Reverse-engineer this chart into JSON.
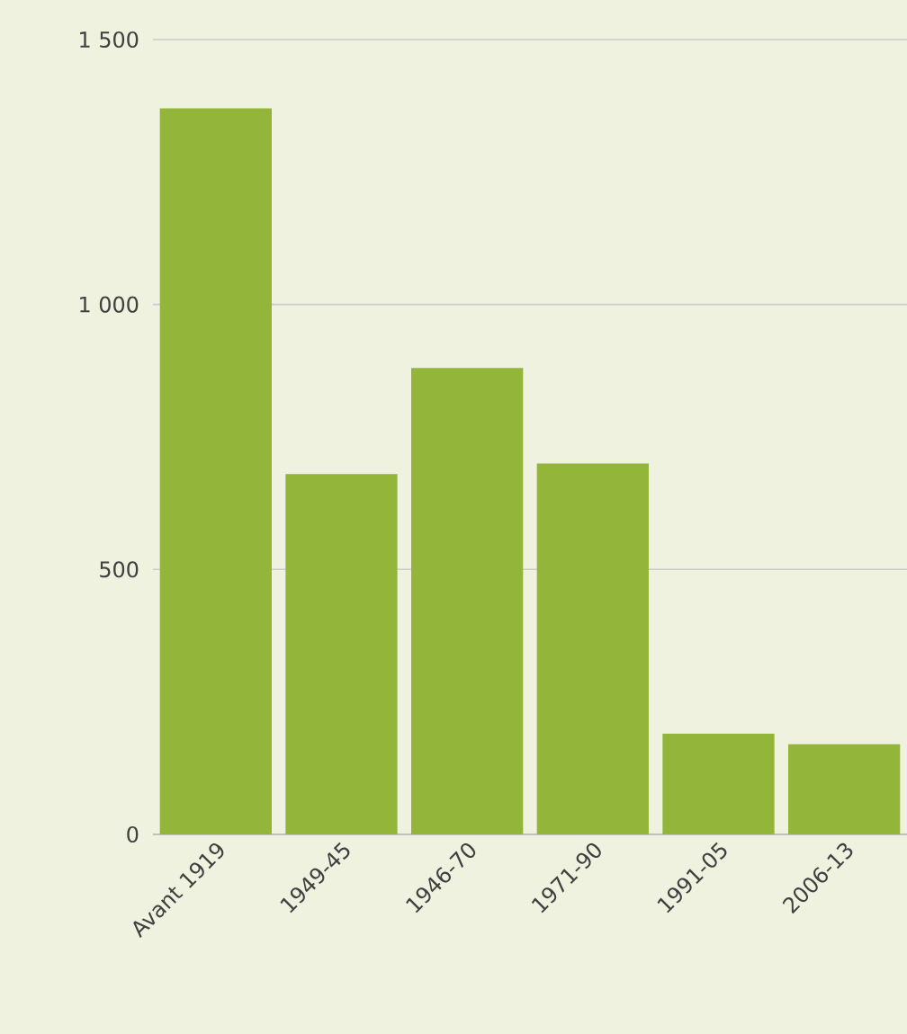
{
  "chart_data": {
    "type": "bar",
    "categories": [
      "Avant 1919",
      "1949-45",
      "1946-70",
      "1971-90",
      "1991-05",
      "2006-13"
    ],
    "values": [
      1370,
      680,
      880,
      700,
      190,
      170
    ],
    "color": "#93b53a",
    "ylim": [
      0,
      1500
    ],
    "yticks": [
      0,
      {
        "value": 500,
        "label": "500"
      },
      {
        "value": 1000,
        "label": "1 000"
      },
      {
        "value": 1500,
        "label": "1 500"
      }
    ],
    "grid": "y"
  }
}
